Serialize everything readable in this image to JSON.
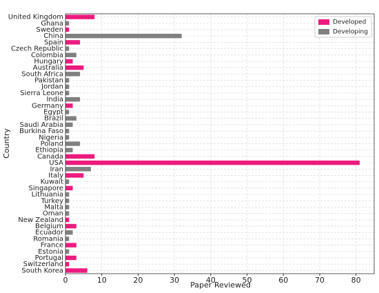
{
  "chart_data": {
    "type": "barh",
    "xlabel": "Paper Reviewed",
    "ylabel": "Country",
    "categories": [
      "United Kingdom",
      "Ghana",
      "Sweden",
      "China",
      "Spain",
      "Czech Republic",
      "Colombia",
      "Hungary",
      "Australia",
      "South Africa",
      "Pakistan",
      "Jordan",
      "Sierra Leone",
      "India",
      "Germany",
      "Egypt",
      "Brazil",
      "Saudi Arabia",
      "Burkina Faso",
      "Nigeria",
      "Poland",
      "Ethiopia",
      "Canada",
      "USA",
      "Iran",
      "Italy",
      "Kuwait",
      "Singapore",
      "Lithuania",
      "Turkey",
      "Malta",
      "Oman",
      "New Zealand",
      "Belgium",
      "Ecuador",
      "Romania",
      "France",
      "Estonia",
      "Portugal",
      "Switzerland",
      "South Korea"
    ],
    "series": [
      {
        "name": "Developed",
        "color": "#ec1b7e",
        "values": [
          8,
          null,
          1,
          null,
          4,
          null,
          null,
          2,
          5,
          null,
          null,
          null,
          null,
          null,
          2,
          null,
          null,
          null,
          null,
          null,
          null,
          null,
          8,
          81,
          null,
          5,
          null,
          2,
          null,
          null,
          null,
          null,
          1,
          3,
          null,
          null,
          3,
          null,
          3,
          1,
          6
        ]
      },
      {
        "name": "Developing",
        "color": "#808080",
        "values": [
          null,
          1,
          null,
          32,
          null,
          1,
          3,
          null,
          null,
          4,
          1,
          1,
          1,
          4,
          null,
          1,
          3,
          2,
          1,
          1,
          4,
          2,
          null,
          null,
          7,
          null,
          1,
          null,
          1,
          1,
          1,
          1,
          null,
          null,
          2,
          1,
          null,
          1,
          null,
          null,
          null
        ]
      }
    ],
    "xlim": [
      0,
      85
    ],
    "xticks": [
      0,
      10,
      20,
      30,
      40,
      50,
      60,
      70,
      80
    ],
    "grid": true,
    "legend": "upper right"
  }
}
